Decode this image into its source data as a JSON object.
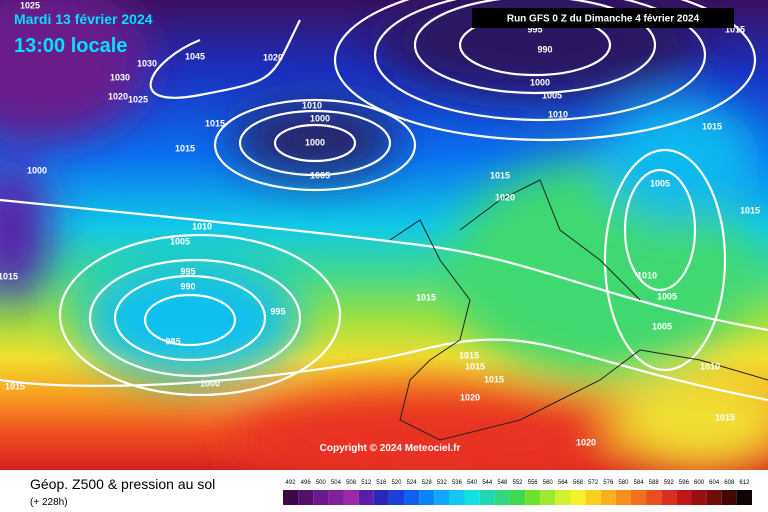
{
  "header": {
    "date": "Mardi 13 février 2024",
    "time": "13:00 locale",
    "run": "Run GFS 0 Z du Dimanche 4 février 2024"
  },
  "copyright": "Copyright © 2024 Meteociel.fr",
  "legend": {
    "title": "Géop. Z500 & pression au sol",
    "lead": "(+ 228h)",
    "scale": [
      {
        "value": 492,
        "color": "#3b0a45"
      },
      {
        "value": 496,
        "color": "#52106a"
      },
      {
        "value": 500,
        "color": "#6a1a8a"
      },
      {
        "value": 504,
        "color": "#80209c"
      },
      {
        "value": 508,
        "color": "#9a2aa8"
      },
      {
        "value": 512,
        "color": "#5a1fa8"
      },
      {
        "value": 516,
        "color": "#2828b8"
      },
      {
        "value": 520,
        "color": "#1a40d8"
      },
      {
        "value": 524,
        "color": "#1060f0"
      },
      {
        "value": 528,
        "color": "#0a84f8"
      },
      {
        "value": 532,
        "color": "#10a8f8"
      },
      {
        "value": 536,
        "color": "#10c8f0"
      },
      {
        "value": 540,
        "color": "#10e0e0"
      },
      {
        "value": 544,
        "color": "#20d8b0"
      },
      {
        "value": 548,
        "color": "#30d880"
      },
      {
        "value": 552,
        "color": "#40d850"
      },
      {
        "value": 556,
        "color": "#70e030"
      },
      {
        "value": 560,
        "color": "#a0e830"
      },
      {
        "value": 564,
        "color": "#d0f030"
      },
      {
        "value": 568,
        "color": "#f8f028"
      },
      {
        "value": 572,
        "color": "#f8d020"
      },
      {
        "value": 576,
        "color": "#f8b020"
      },
      {
        "value": 580,
        "color": "#f89020"
      },
      {
        "value": 584,
        "color": "#f07020"
      },
      {
        "value": 588,
        "color": "#e85020"
      },
      {
        "value": 592,
        "color": "#d83020"
      },
      {
        "value": 596,
        "color": "#c01818"
      },
      {
        "value": 600,
        "color": "#981010"
      },
      {
        "value": 604,
        "color": "#700c0c"
      },
      {
        "value": 608,
        "color": "#400808"
      },
      {
        "value": 612,
        "color": "#100404"
      }
    ]
  },
  "isobar_labels": [
    1025,
    1030,
    1020,
    1025,
    1030,
    1045,
    1020,
    995,
    990,
    1000,
    1005,
    1010,
    1015,
    1015,
    1010,
    1000,
    1000,
    1015,
    1015,
    1005,
    1000,
    1015,
    1020,
    1005,
    1015,
    1010,
    1005,
    995,
    990,
    995,
    985,
    1015,
    1015,
    1010,
    1005,
    1005,
    1010,
    1015,
    1015,
    1015,
    1020,
    1000,
    1015,
    1020,
    1015
  ]
}
